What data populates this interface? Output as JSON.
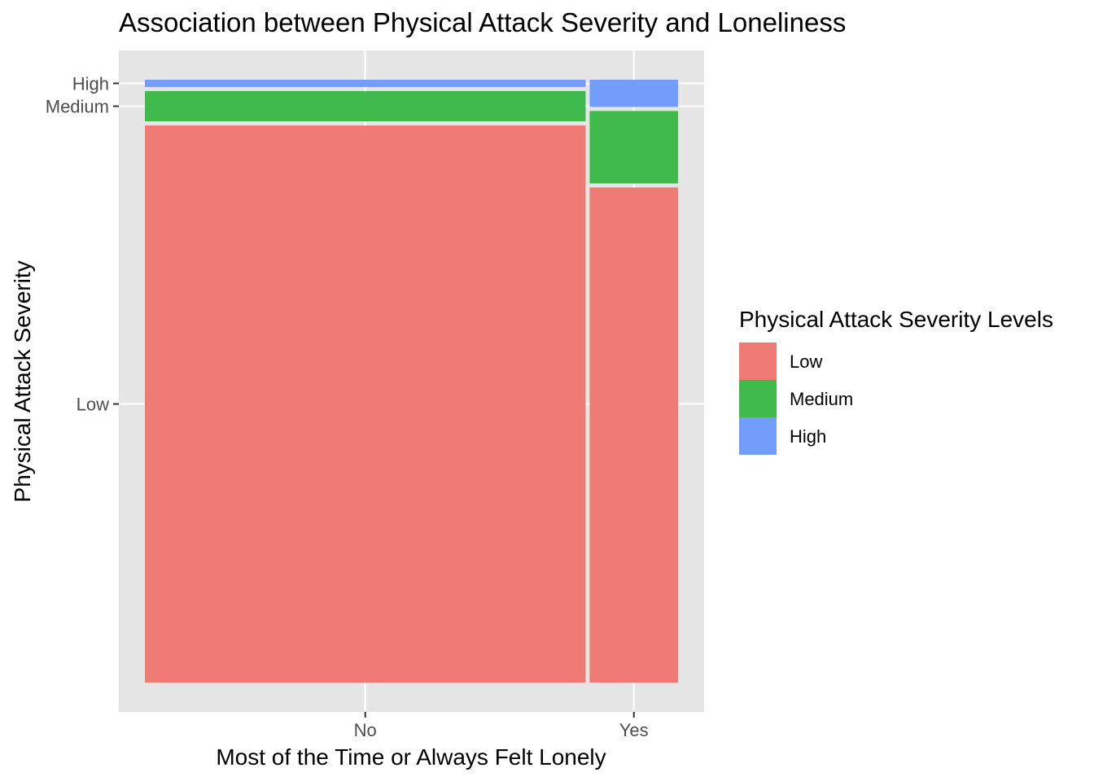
{
  "chart_data": {
    "type": "mosaic",
    "title": "Association between Physical Attack Severity and Loneliness",
    "xlabel": "Most of the Time or Always Felt Lonely",
    "ylabel": "Physical Attack Severity",
    "categories": [
      "No",
      "Yes"
    ],
    "column_shares": [
      0.833,
      0.167
    ],
    "y_ticks": [
      "Low",
      "Medium",
      "High"
    ],
    "legend": {
      "title": "Physical Attack Severity Levels",
      "position": "right"
    },
    "series": [
      {
        "name": "Low",
        "color": "#F07A74",
        "values": [
          0.92,
          0.82
        ]
      },
      {
        "name": "Medium",
        "color": "#40BA4C",
        "values": [
          0.05,
          0.12
        ]
      },
      {
        "name": "High",
        "color": "#729DFB",
        "values": [
          0.012,
          0.045
        ]
      }
    ],
    "grid": true,
    "panel_background": "#E5E5E5"
  }
}
